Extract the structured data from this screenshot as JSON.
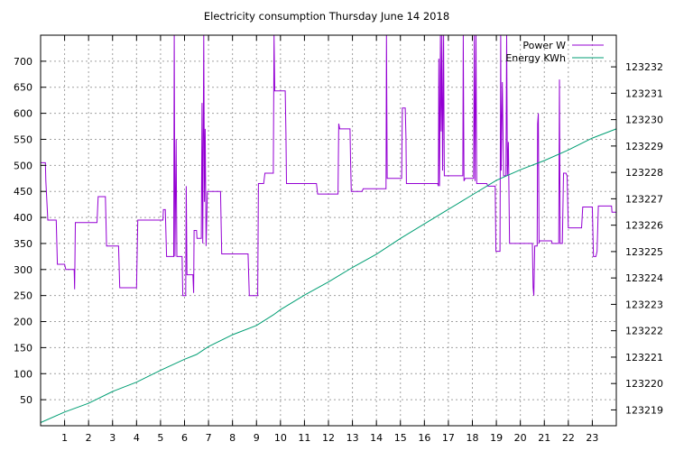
{
  "chart_data": {
    "type": "line",
    "title": "Electricity consumption Thursday June 14 2018",
    "xlabel": "",
    "ylabel": "",
    "y2label": "",
    "grid": true,
    "legend_position": "top-right",
    "x_range": [
      0,
      24
    ],
    "x_ticks": [
      1,
      2,
      3,
      4,
      5,
      6,
      7,
      8,
      9,
      10,
      11,
      12,
      13,
      14,
      15,
      16,
      17,
      18,
      19,
      20,
      21,
      22,
      23
    ],
    "y_range": [
      0,
      750
    ],
    "y_ticks": [
      50,
      100,
      150,
      200,
      250,
      300,
      350,
      400,
      450,
      500,
      550,
      600,
      650,
      700
    ],
    "y2_range": [
      123218.4,
      123233.2
    ],
    "y2_ticks": [
      123219,
      123220,
      123221,
      123222,
      123223,
      123224,
      123225,
      123226,
      123227,
      123228,
      123229,
      123230,
      123231,
      123232
    ],
    "series": [
      {
        "name": "Power W",
        "color": "#9400d3",
        "axis": "y",
        "points": [
          [
            0.0,
            505
          ],
          [
            0.2,
            505
          ],
          [
            0.22,
            470
          ],
          [
            0.3,
            395
          ],
          [
            0.65,
            395
          ],
          [
            0.7,
            310
          ],
          [
            1.0,
            310
          ],
          [
            1.05,
            300
          ],
          [
            1.4,
            300
          ],
          [
            1.42,
            262
          ],
          [
            1.45,
            390
          ],
          [
            2.35,
            390
          ],
          [
            2.4,
            440
          ],
          [
            2.7,
            440
          ],
          [
            2.75,
            345
          ],
          [
            3.25,
            345
          ],
          [
            3.3,
            265
          ],
          [
            4.0,
            265
          ],
          [
            4.05,
            395
          ],
          [
            5.1,
            395
          ],
          [
            5.12,
            415
          ],
          [
            5.2,
            415
          ],
          [
            5.25,
            325
          ],
          [
            5.55,
            325
          ],
          [
            5.57,
            750
          ],
          [
            5.6,
            325
          ],
          [
            5.65,
            550
          ],
          [
            5.68,
            325
          ],
          [
            5.9,
            325
          ],
          [
            5.93,
            250
          ],
          [
            6.05,
            250
          ],
          [
            6.07,
            460
          ],
          [
            6.1,
            290
          ],
          [
            6.35,
            290
          ],
          [
            6.38,
            255
          ],
          [
            6.4,
            375
          ],
          [
            6.5,
            375
          ],
          [
            6.52,
            360
          ],
          [
            6.7,
            360
          ],
          [
            6.73,
            620
          ],
          [
            6.76,
            350
          ],
          [
            6.8,
            750
          ],
          [
            6.83,
            430
          ],
          [
            6.86,
            570
          ],
          [
            6.9,
            345
          ],
          [
            6.95,
            450
          ],
          [
            7.5,
            450
          ],
          [
            7.55,
            330
          ],
          [
            8.65,
            330
          ],
          [
            8.7,
            250
          ],
          [
            9.05,
            250
          ],
          [
            9.08,
            465
          ],
          [
            9.3,
            465
          ],
          [
            9.35,
            485
          ],
          [
            9.7,
            485
          ],
          [
            9.73,
            750
          ],
          [
            9.76,
            643
          ],
          [
            10.2,
            643
          ],
          [
            10.23,
            560
          ],
          [
            10.25,
            465
          ],
          [
            11.5,
            465
          ],
          [
            11.55,
            445
          ],
          [
            12.4,
            445
          ],
          [
            12.43,
            580
          ],
          [
            12.47,
            570
          ],
          [
            12.9,
            570
          ],
          [
            12.92,
            510
          ],
          [
            12.95,
            450
          ],
          [
            13.4,
            450
          ],
          [
            13.45,
            455
          ],
          [
            14.4,
            455
          ],
          [
            14.42,
            750
          ],
          [
            14.45,
            475
          ],
          [
            15.05,
            475
          ],
          [
            15.08,
            610
          ],
          [
            15.2,
            610
          ],
          [
            15.23,
            555
          ],
          [
            15.25,
            465
          ],
          [
            16.55,
            465
          ],
          [
            16.58,
            460
          ],
          [
            16.6,
            705
          ],
          [
            16.63,
            460
          ],
          [
            16.67,
            750
          ],
          [
            16.7,
            565
          ],
          [
            16.73,
            750
          ],
          [
            16.76,
            490
          ],
          [
            16.8,
            750
          ],
          [
            16.83,
            480
          ],
          [
            17.6,
            480
          ],
          [
            17.62,
            750
          ],
          [
            17.65,
            470
          ],
          [
            17.7,
            475
          ],
          [
            18.05,
            475
          ],
          [
            18.08,
            750
          ],
          [
            18.11,
            470
          ],
          [
            18.15,
            750
          ],
          [
            18.18,
            465
          ],
          [
            18.6,
            465
          ],
          [
            18.65,
            460
          ],
          [
            18.95,
            460
          ],
          [
            18.98,
            335
          ],
          [
            19.15,
            335
          ],
          [
            19.18,
            750
          ],
          [
            19.2,
            490
          ],
          [
            19.25,
            660
          ],
          [
            19.3,
            480
          ],
          [
            19.4,
            480
          ],
          [
            19.43,
            750
          ],
          [
            19.46,
            480
          ],
          [
            19.5,
            545
          ],
          [
            19.55,
            350
          ],
          [
            20.5,
            350
          ],
          [
            20.53,
            265
          ],
          [
            20.56,
            250
          ],
          [
            20.6,
            345
          ],
          [
            20.7,
            345
          ],
          [
            20.72,
            580
          ],
          [
            20.75,
            600
          ],
          [
            20.78,
            350
          ],
          [
            20.8,
            355
          ],
          [
            21.3,
            355
          ],
          [
            21.33,
            350
          ],
          [
            21.6,
            350
          ],
          [
            21.63,
            665
          ],
          [
            21.66,
            350
          ],
          [
            21.75,
            350
          ],
          [
            21.8,
            485
          ],
          [
            21.9,
            485
          ],
          [
            21.95,
            480
          ],
          [
            22.0,
            380
          ],
          [
            22.55,
            380
          ],
          [
            22.6,
            420
          ],
          [
            23.0,
            420
          ],
          [
            23.05,
            325
          ],
          [
            23.15,
            325
          ],
          [
            23.2,
            335
          ],
          [
            23.25,
            422
          ],
          [
            23.8,
            422
          ],
          [
            23.82,
            410
          ],
          [
            24.0,
            410
          ]
        ]
      },
      {
        "name": "Energy KWh",
        "color": "#009e73",
        "axis": "y2",
        "points": [
          [
            0.0,
            123218.52
          ],
          [
            1.0,
            123218.92
          ],
          [
            2.0,
            123219.25
          ],
          [
            3.0,
            123219.7
          ],
          [
            4.0,
            123220.05
          ],
          [
            5.0,
            123220.5
          ],
          [
            6.0,
            123220.92
          ],
          [
            6.5,
            123221.1
          ],
          [
            7.0,
            123221.4
          ],
          [
            8.0,
            123221.85
          ],
          [
            9.0,
            123222.2
          ],
          [
            9.7,
            123222.6
          ],
          [
            10.0,
            123222.8
          ],
          [
            11.0,
            123223.35
          ],
          [
            12.0,
            123223.85
          ],
          [
            13.0,
            123224.4
          ],
          [
            14.0,
            123224.9
          ],
          [
            15.0,
            123225.5
          ],
          [
            16.0,
            123226.05
          ],
          [
            17.0,
            123226.6
          ],
          [
            18.0,
            123227.15
          ],
          [
            19.0,
            123227.7
          ],
          [
            20.0,
            123228.1
          ],
          [
            21.0,
            123228.45
          ],
          [
            22.0,
            123228.85
          ],
          [
            23.0,
            123229.3
          ],
          [
            24.0,
            123229.65
          ]
        ]
      }
    ]
  }
}
